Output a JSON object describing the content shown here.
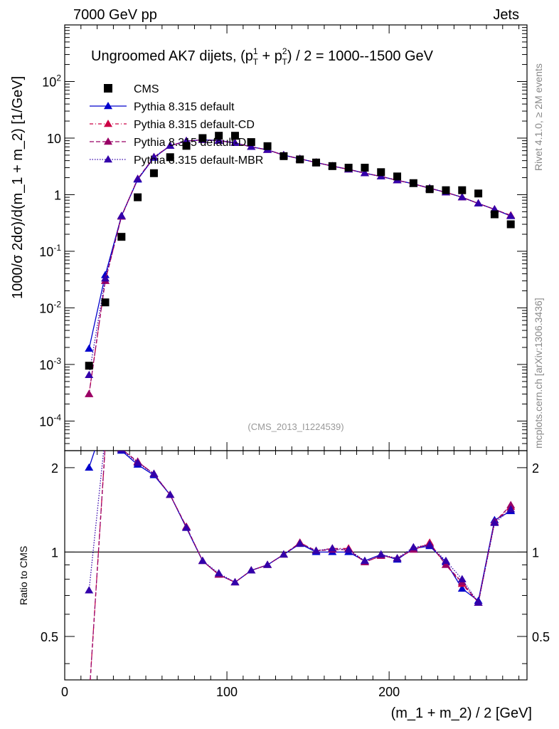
{
  "header": {
    "left": "7000 GeV pp",
    "right": "Jets",
    "title": "Ungroomed AK7 dijets, (p",
    "title_sup1": "1",
    "title_mid": " + p",
    "title_sup2": "2",
    "title_sub": "T",
    "title_end": ") / 2 = 1000--1500 GeV",
    "watermark": "(CMS_2013_I1224539)",
    "side_right_top": "Rivet 4.1.0, ≥ 2M events",
    "side_right_bottom": "mcplots.cern.ch [arXiv:1306.3436]"
  },
  "chart_data": {
    "type": "scatter",
    "title": "Ungroomed AK7 dijets, (p_T^1 + p_T^2) / 2 = 1000--1500 GeV",
    "xlabel": "(m_1 + m_2) / 2 [GeV]",
    "ylabel": "1000/σ  2dσ)/d(m_1 + m_2) [1/GeV]",
    "ratio_ylabel": "Ratio to CMS",
    "xlim": [
      0,
      285
    ],
    "ylim": [
      3e-05,
      1000
    ],
    "ratio_ylim": [
      0.35,
      2.3
    ],
    "yscale": "log",
    "x_ticks": [
      0,
      100,
      200
    ],
    "y_ticks": [
      "10^-4",
      "10^-3",
      "10^-2",
      "10^-1",
      "1",
      "10",
      "10^2"
    ],
    "ratio_ticks": [
      "0.5",
      "1",
      "2"
    ],
    "x": [
      15,
      25,
      35,
      45,
      55,
      65,
      75,
      85,
      95,
      105,
      115,
      125,
      135,
      145,
      155,
      165,
      175,
      185,
      195,
      205,
      215,
      225,
      235,
      245,
      255,
      265,
      275
    ],
    "legend": [
      "CMS",
      "Pythia 8.315 default",
      "Pythia 8.315 default-CD",
      "Pythia 8.315 default-DL",
      "Pythia 8.315 default-MBR"
    ],
    "series": [
      {
        "name": "CMS",
        "color": "#000000",
        "style": "marker",
        "values": [
          0.00095,
          0.0125,
          0.18,
          0.9,
          2.4,
          4.6,
          7.3,
          10.0,
          11.0,
          11.0,
          8.5,
          7.2,
          4.8,
          4.2,
          3.7,
          3.2,
          3.0,
          3.0,
          2.5,
          2.1,
          1.6,
          1.25,
          1.2,
          1.2,
          1.05,
          0.45,
          0.3
        ]
      },
      {
        "name": "Pythia 8.315 default",
        "color": "#0000cc",
        "style": "solid",
        "values": [
          0.0019,
          0.038,
          0.42,
          1.85,
          4.5,
          7.3,
          8.9,
          9.3,
          9.1,
          8.2,
          7.0,
          6.2,
          5.0,
          4.3,
          3.7,
          3.2,
          2.8,
          2.4,
          2.1,
          1.8,
          1.55,
          1.3,
          1.1,
          0.9,
          0.7,
          0.55,
          0.42
        ],
        "ratio": [
          2.0,
          3.0,
          2.3,
          2.05,
          1.88,
          1.6,
          1.22,
          0.93,
          0.83,
          0.78,
          0.86,
          0.9,
          0.98,
          1.07,
          1.0,
          1.0,
          1.0,
          0.93,
          0.98,
          0.94,
          1.03,
          1.05,
          0.92,
          0.74,
          0.67,
          1.3,
          1.4
        ]
      },
      {
        "name": "Pythia 8.315 default-CD",
        "color": "#cc0044",
        "style": "dashdot",
        "values": [
          0.0003,
          0.03,
          0.42,
          1.9,
          4.6,
          7.3,
          8.9,
          9.3,
          9.0,
          8.2,
          7.0,
          6.2,
          5.0,
          4.3,
          3.7,
          3.2,
          2.8,
          2.4,
          2.1,
          1.8,
          1.55,
          1.3,
          1.1,
          0.9,
          0.7,
          0.55,
          0.43
        ],
        "ratio": [
          0.3,
          2.4,
          2.33,
          2.1,
          1.9,
          1.6,
          1.23,
          0.93,
          0.83,
          0.78,
          0.86,
          0.9,
          0.98,
          1.08,
          1.01,
          1.03,
          1.03,
          0.92,
          0.97,
          0.95,
          1.02,
          1.08,
          0.9,
          0.77,
          0.66,
          1.28,
          1.45
        ]
      },
      {
        "name": "Pythia 8.315 default-DL",
        "color": "#990066",
        "style": "dashed",
        "values": [
          0.0003,
          0.03,
          0.41,
          1.9,
          4.6,
          7.3,
          8.9,
          9.3,
          9.0,
          8.2,
          7.0,
          6.2,
          5.0,
          4.3,
          3.7,
          3.2,
          2.8,
          2.4,
          2.1,
          1.8,
          1.55,
          1.3,
          1.1,
          0.9,
          0.7,
          0.55,
          0.43
        ],
        "ratio": [
          0.3,
          2.4,
          2.33,
          2.1,
          1.9,
          1.6,
          1.23,
          0.93,
          0.83,
          0.78,
          0.86,
          0.9,
          0.98,
          1.08,
          1.01,
          1.02,
          1.02,
          0.92,
          0.97,
          0.95,
          1.02,
          1.07,
          0.9,
          0.78,
          0.66,
          1.28,
          1.47
        ]
      },
      {
        "name": "Pythia 8.315 default-MBR",
        "color": "#3300aa",
        "style": "dotted",
        "values": [
          0.00065,
          0.033,
          0.42,
          1.9,
          4.6,
          7.3,
          8.9,
          9.3,
          9.0,
          8.2,
          7.0,
          6.2,
          5.0,
          4.3,
          3.7,
          3.2,
          2.8,
          2.4,
          2.1,
          1.8,
          1.55,
          1.3,
          1.1,
          0.9,
          0.7,
          0.55,
          0.42
        ],
        "ratio": [
          0.73,
          2.6,
          2.32,
          2.08,
          1.9,
          1.6,
          1.22,
          0.93,
          0.84,
          0.78,
          0.86,
          0.9,
          0.98,
          1.07,
          1.01,
          1.03,
          1.02,
          0.93,
          0.98,
          0.95,
          1.04,
          1.06,
          0.93,
          0.8,
          0.66,
          1.27,
          1.42
        ]
      }
    ]
  }
}
